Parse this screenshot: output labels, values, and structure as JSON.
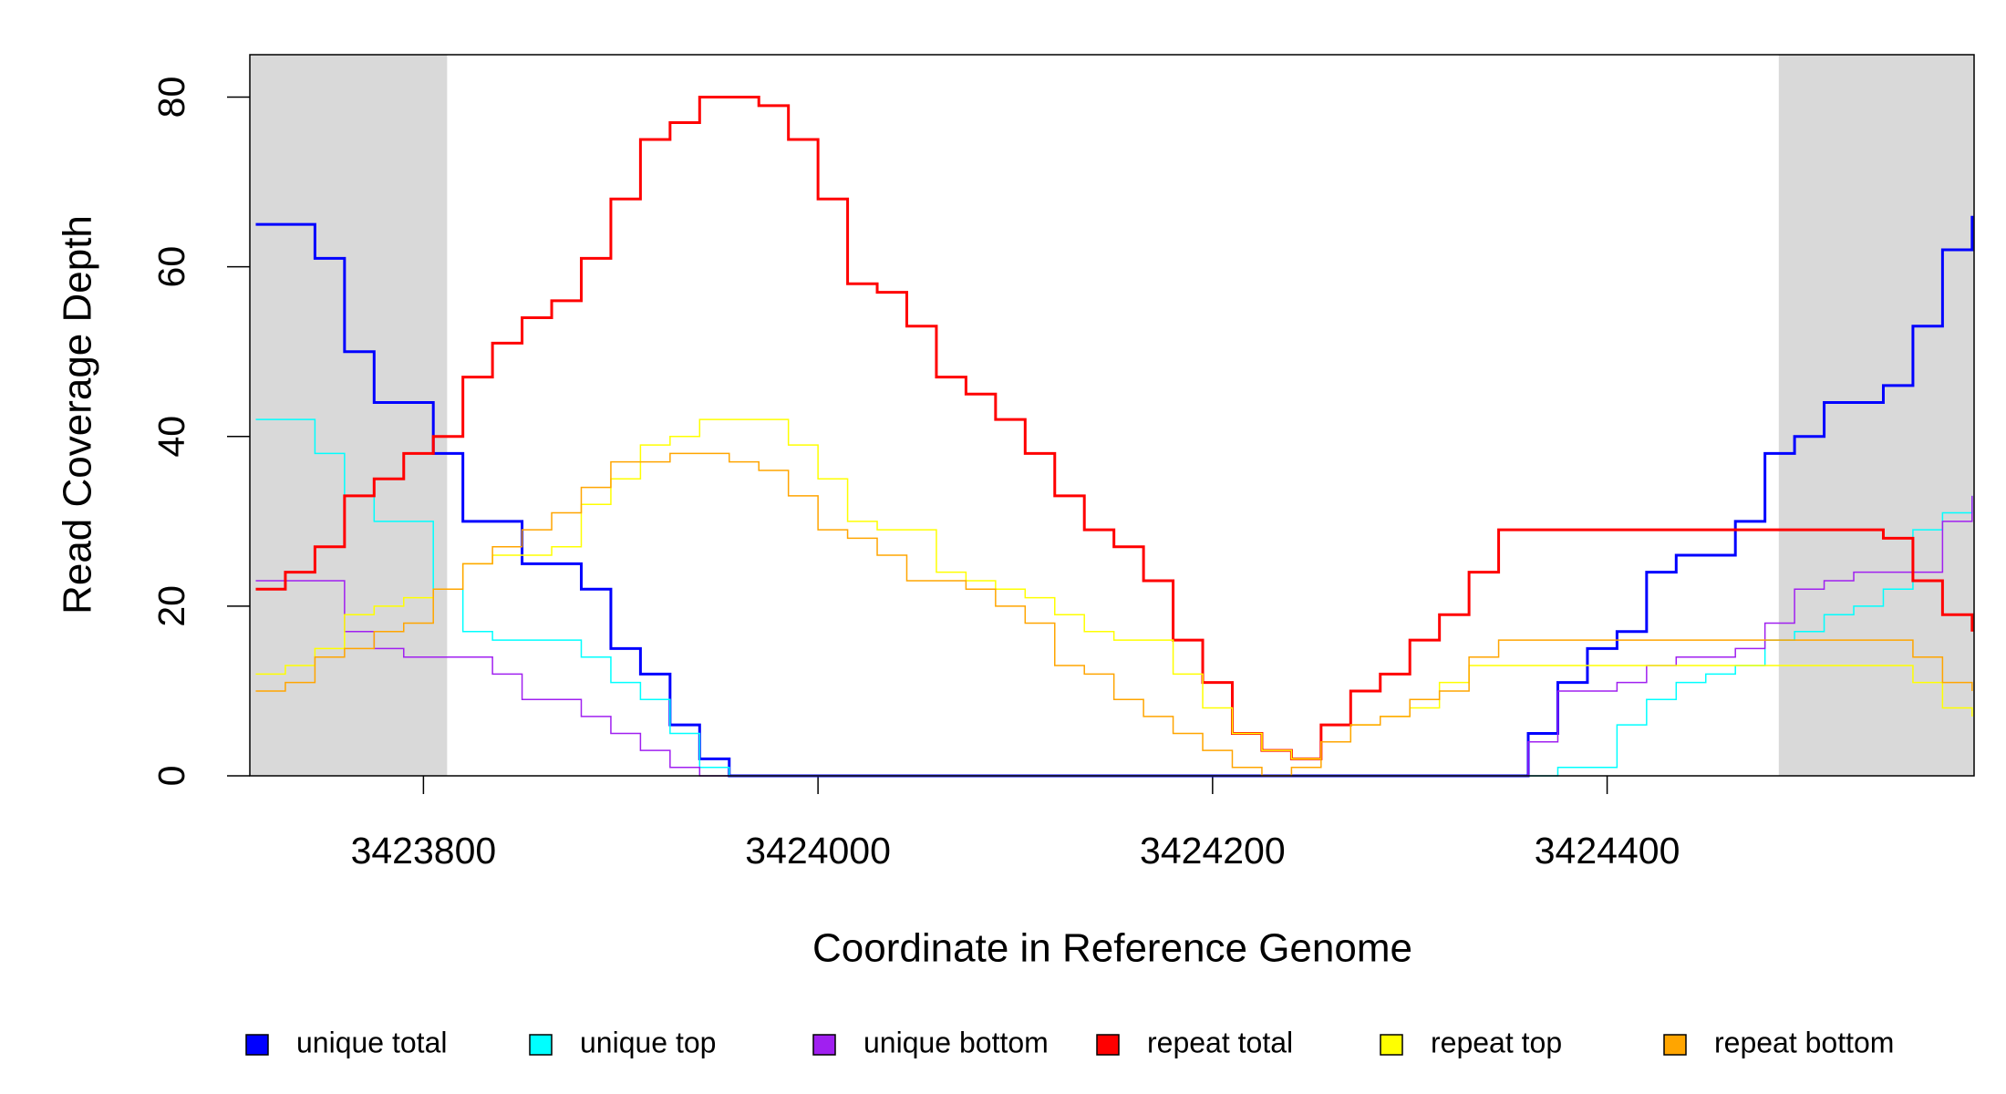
{
  "chart_data": {
    "type": "line",
    "step": true,
    "xlabel": "Coordinate in Reference Genome",
    "ylabel": "Read Coverage Depth",
    "xlim": [
      3423712,
      3424586
    ],
    "ylim": [
      0,
      85
    ],
    "xticks": [
      3423800,
      3424000,
      3424200,
      3424400
    ],
    "yticks": [
      0,
      20,
      40,
      60,
      80
    ],
    "shaded_regions": [
      [
        3423712,
        3423812
      ],
      [
        3424487,
        3424586
      ]
    ],
    "shade_color": "#d9d9d9",
    "legend": "bottom",
    "x": [
      3423715,
      3423730,
      3423745,
      3423760,
      3423775,
      3423790,
      3423805,
      3423820,
      3423835,
      3423850,
      3423865,
      3423880,
      3423895,
      3423910,
      3423925,
      3423940,
      3423955,
      3423970,
      3423985,
      3424000,
      3424015,
      3424030,
      3424045,
      3424060,
      3424075,
      3424090,
      3424105,
      3424120,
      3424135,
      3424150,
      3424165,
      3424180,
      3424195,
      3424210,
      3424225,
      3424240,
      3424255,
      3424270,
      3424285,
      3424300,
      3424315,
      3424330,
      3424345,
      3424360,
      3424375,
      3424390,
      3424405,
      3424420,
      3424435,
      3424450,
      3424465,
      3424480,
      3424495,
      3424510,
      3424525,
      3424540,
      3424555,
      3424570,
      3424585
    ],
    "series": [
      {
        "name": "unique total",
        "color": "#0000ff",
        "linewidth": 2,
        "values": [
          65,
          65,
          61,
          50,
          44,
          44,
          38,
          30,
          30,
          25,
          25,
          22,
          15,
          12,
          6,
          2,
          0,
          0,
          0,
          0,
          0,
          0,
          0,
          0,
          0,
          0,
          0,
          0,
          0,
          0,
          0,
          0,
          0,
          0,
          0,
          0,
          0,
          0,
          0,
          0,
          0,
          0,
          0,
          5,
          11,
          15,
          17,
          24,
          26,
          26,
          30,
          38,
          40,
          44,
          44,
          46,
          53,
          62,
          66
        ]
      },
      {
        "name": "unique top",
        "color": "#00ffff",
        "linewidth": 1,
        "values": [
          42,
          42,
          38,
          33,
          30,
          30,
          22,
          17,
          16,
          16,
          16,
          14,
          11,
          9,
          5,
          1,
          0,
          0,
          0,
          0,
          0,
          0,
          0,
          0,
          0,
          0,
          0,
          0,
          0,
          0,
          0,
          0,
          0,
          0,
          0,
          0,
          0,
          0,
          0,
          0,
          0,
          0,
          0,
          0,
          1,
          1,
          6,
          9,
          11,
          12,
          13,
          16,
          17,
          19,
          20,
          22,
          29,
          31,
          33
        ]
      },
      {
        "name": "unique bottom",
        "color": "#a020f0",
        "linewidth": 1,
        "values": [
          23,
          23,
          23,
          17,
          15,
          14,
          14,
          14,
          12,
          9,
          9,
          7,
          5,
          3,
          1,
          0,
          0,
          0,
          0,
          0,
          0,
          0,
          0,
          0,
          0,
          0,
          0,
          0,
          0,
          0,
          0,
          0,
          0,
          0,
          0,
          0,
          0,
          0,
          0,
          0,
          0,
          0,
          0,
          4,
          10,
          10,
          11,
          13,
          14,
          14,
          15,
          18,
          22,
          23,
          24,
          24,
          24,
          30,
          33
        ]
      },
      {
        "name": "repeat total",
        "color": "#ff0000",
        "linewidth": 2,
        "values": [
          22,
          24,
          27,
          33,
          35,
          38,
          40,
          47,
          51,
          54,
          56,
          61,
          68,
          75,
          77,
          80,
          80,
          79,
          75,
          68,
          58,
          57,
          53,
          47,
          45,
          42,
          38,
          33,
          29,
          27,
          23,
          16,
          11,
          5,
          3,
          2,
          6,
          10,
          12,
          16,
          19,
          24,
          29,
          29,
          29,
          29,
          29,
          29,
          29,
          29,
          29,
          29,
          29,
          29,
          29,
          28,
          23,
          19,
          17
        ]
      },
      {
        "name": "repeat top",
        "color": "#ffff00",
        "linewidth": 1,
        "values": [
          12,
          13,
          15,
          19,
          20,
          21,
          22,
          25,
          26,
          26,
          27,
          32,
          35,
          39,
          40,
          42,
          42,
          42,
          39,
          35,
          30,
          29,
          29,
          24,
          23,
          22,
          21,
          19,
          17,
          16,
          16,
          12,
          8,
          5,
          3,
          2,
          4,
          6,
          7,
          8,
          11,
          13,
          13,
          13,
          13,
          13,
          13,
          13,
          13,
          13,
          13,
          13,
          13,
          13,
          13,
          13,
          11,
          8,
          7
        ]
      },
      {
        "name": "repeat bottom",
        "color": "#ffa500",
        "linewidth": 1,
        "values": [
          10,
          11,
          14,
          15,
          17,
          18,
          22,
          25,
          27,
          29,
          31,
          34,
          37,
          37,
          38,
          38,
          37,
          36,
          33,
          29,
          28,
          26,
          23,
          23,
          22,
          20,
          18,
          13,
          12,
          9,
          7,
          5,
          3,
          1,
          0,
          1,
          4,
          6,
          7,
          9,
          10,
          14,
          16,
          16,
          16,
          16,
          16,
          16,
          16,
          16,
          16,
          16,
          16,
          16,
          16,
          16,
          14,
          11,
          10
        ]
      }
    ]
  }
}
